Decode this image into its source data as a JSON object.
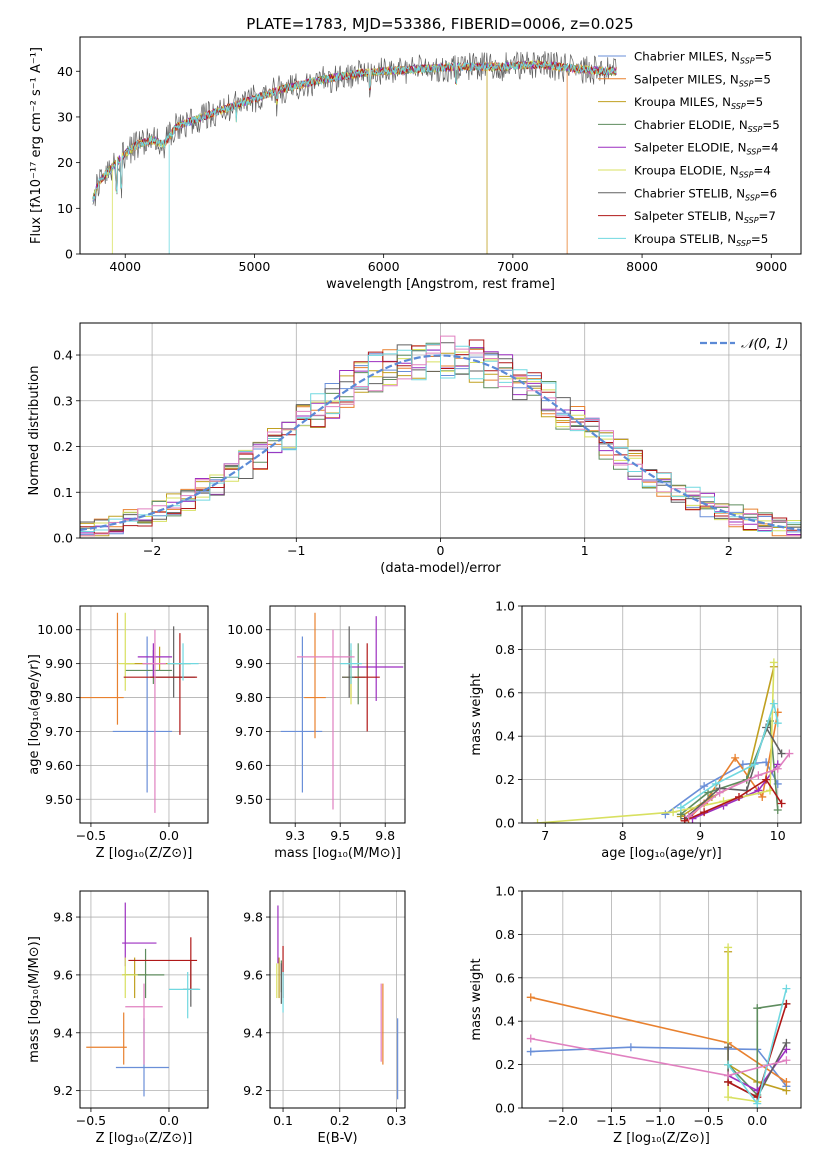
{
  "figure_title": "PLATE=1783, MJD=53386, FIBERID=0006, z=0.025",
  "colors": [
    "#6a8fd8",
    "#e8812f",
    "#c0a020",
    "#5e8c5e",
    "#9c2fc0",
    "#d8e060",
    "#606060",
    "#b01818",
    "#70d8e0",
    "#e080c0"
  ],
  "chart_data": [
    {
      "id": "spectrum",
      "type": "line",
      "xlabel": "wavelength [Angstrom, rest frame]",
      "ylabel": "Flux [fλ10⁻¹⁷ erg cm⁻² s⁻¹ A⁻¹]",
      "xlim": [
        3650,
        9230
      ],
      "ylim": [
        0,
        47.5
      ],
      "xticks": [
        4000,
        5000,
        6000,
        7000,
        8000,
        9000
      ],
      "yticks": [
        0,
        10,
        20,
        30,
        40
      ],
      "grid": false,
      "legend_placement": "top-right",
      "continuum": [
        [
          3750,
          12
        ],
        [
          3800,
          16
        ],
        [
          3900,
          19
        ],
        [
          4000,
          22
        ],
        [
          4100,
          24
        ],
        [
          4200,
          25
        ],
        [
          4300,
          24
        ],
        [
          4400,
          28
        ],
        [
          4600,
          30
        ],
        [
          4800,
          32
        ],
        [
          5000,
          34
        ],
        [
          5200,
          36
        ],
        [
          5500,
          38
        ],
        [
          5800,
          39.5
        ],
        [
          6000,
          40
        ],
        [
          6300,
          40.5
        ],
        [
          6600,
          41
        ],
        [
          6900,
          41
        ],
        [
          7200,
          41.5
        ],
        [
          7500,
          40.5
        ],
        [
          7700,
          40
        ],
        [
          7800,
          40
        ]
      ],
      "series": [
        {
          "name": "Chabrier MILES, N_SSP=5",
          "legend_main": "Chabrier MILES, N",
          "legend_sub": "SSP",
          "legend_tail": "=5"
        },
        {
          "name": "Salpeter MILES, N_SSP=5",
          "legend_main": "Salpeter MILES, N",
          "legend_sub": "SSP",
          "legend_tail": "=5"
        },
        {
          "name": "Kroupa MILES, N_SSP=5",
          "legend_main": "Kroupa MILES, N",
          "legend_sub": "SSP",
          "legend_tail": "=5"
        },
        {
          "name": "Chabrier ELODIE, N_SSP=5",
          "legend_main": "Chabrier ELODIE, N",
          "legend_sub": "SSP",
          "legend_tail": "=5"
        },
        {
          "name": "Salpeter ELODIE, N_SSP=4",
          "legend_main": "Salpeter ELODIE, N",
          "legend_sub": "SSP",
          "legend_tail": "=4"
        },
        {
          "name": "Kroupa ELODIE, N_SSP=4",
          "legend_main": "Kroupa ELODIE, N",
          "legend_sub": "SSP",
          "legend_tail": "=4"
        },
        {
          "name": "Chabrier STELIB, N_SSP=6",
          "legend_main": "Chabrier STELIB, N",
          "legend_sub": "SSP",
          "legend_tail": "=6"
        },
        {
          "name": "Salpeter STELIB, N_SSP=7",
          "legend_main": "Salpeter STELIB, N",
          "legend_sub": "SSP",
          "legend_tail": "=7"
        },
        {
          "name": "Kroupa STELIB, N_SSP=5",
          "legend_main": "Kroupa STELIB, N",
          "legend_sub": "SSP",
          "legend_tail": "=5"
        }
      ]
    },
    {
      "id": "residuals",
      "type": "bar",
      "xlabel": "(data-model)/error",
      "ylabel": "Normed distribution",
      "xlim": [
        -2.5,
        2.5
      ],
      "ylim": [
        0,
        0.47
      ],
      "xticks": [
        -2,
        -1,
        0,
        1,
        2
      ],
      "yticks": [
        0.0,
        0.1,
        0.2,
        0.3,
        0.4
      ],
      "grid": true,
      "legend_placement": "top-right",
      "reference_curve": "N(0,1)",
      "legend_label": "𝒩(0, 1)",
      "bin_width": 0.1
    },
    {
      "id": "age-vs-Z",
      "type": "scatter",
      "xlabel": "Z [log₁₀(Z/Z⊙)]",
      "ylabel": "age  [log₁₀(age/yr)]",
      "xlim": [
        -0.57,
        0.25
      ],
      "ylim": [
        9.43,
        10.07
      ],
      "xticks": [
        -0.5,
        0.0
      ],
      "yticks": [
        9.5,
        9.6,
        9.7,
        9.8,
        9.9,
        10.0
      ],
      "grid": true,
      "points": [
        {
          "x": -0.14,
          "y": 9.7,
          "xerr": [
            0.22,
            0.16
          ],
          "yerr": [
            0.18,
            0.28
          ],
          "c": 0
        },
        {
          "x": -0.33,
          "y": 9.8,
          "xerr": [
            0.24,
            0.04
          ],
          "yerr": [
            0.08,
            0.25
          ],
          "c": 1
        },
        {
          "x": -0.06,
          "y": 9.9,
          "xerr": [
            0.22,
            0.2
          ],
          "yerr": [
            0.02,
            0.05
          ],
          "c": 2
        },
        {
          "x": -0.1,
          "y": 9.88,
          "xerr": [
            0.18,
            0.12
          ],
          "yerr": [
            0.04,
            0.06
          ],
          "c": 3
        },
        {
          "x": -0.1,
          "y": 9.92,
          "xerr": [
            0.1,
            0.12
          ],
          "yerr": [
            0.06,
            0.04
          ],
          "c": 4
        },
        {
          "x": -0.28,
          "y": 9.9,
          "xerr": [
            0.04,
            0.06
          ],
          "yerr": [
            0.08,
            0.15
          ],
          "c": 5
        },
        {
          "x": 0.03,
          "y": 9.86,
          "xerr": [
            0.15,
            0.14
          ],
          "yerr": [
            0.06,
            0.15
          ],
          "c": 6
        },
        {
          "x": 0.07,
          "y": 9.86,
          "xerr": [
            0.36,
            0.11
          ],
          "yerr": [
            0.17,
            0.13
          ],
          "c": 7
        },
        {
          "x": 0.09,
          "y": 9.9,
          "xerr": [
            0.1,
            0.1
          ],
          "yerr": [
            0.05,
            0.06
          ],
          "c": 8
        },
        {
          "x": -0.09,
          "y": 9.9,
          "xerr": [
            0.08,
            0.07
          ],
          "yerr": [
            0.44,
            0.1
          ],
          "c": 9
        }
      ]
    },
    {
      "id": "age-vs-mass",
      "type": "scatter",
      "xlabel": "mass [log₁₀(M/M⊙)]",
      "ylabel": "",
      "xlim": [
        9.11,
        9.86
      ],
      "ylim": [
        9.43,
        10.07
      ],
      "xticks": [
        9.25,
        9.5,
        9.75
      ],
      "yticks": [
        9.5,
        9.6,
        9.7,
        9.8,
        9.9,
        10.0
      ],
      "grid": true,
      "points": [
        {
          "x": 9.29,
          "y": 9.7,
          "xerr": [
            0.12,
            0.11
          ],
          "yerr": [
            0.18,
            0.28
          ],
          "c": 0
        },
        {
          "x": 9.36,
          "y": 9.8,
          "xerr": [
            0.06,
            0.06
          ],
          "yerr": [
            0.12,
            0.25
          ],
          "c": 1
        },
        {
          "x": 9.56,
          "y": 9.86,
          "xerr": [
            0.05,
            0.05
          ],
          "yerr": [
            0.06,
            0.08
          ],
          "c": 2
        },
        {
          "x": 9.6,
          "y": 9.86,
          "xerr": [
            0.06,
            0.04
          ],
          "yerr": [
            0.08,
            0.1
          ],
          "c": 3
        },
        {
          "x": 9.7,
          "y": 9.89,
          "xerr": [
            0.15,
            0.15
          ],
          "yerr": [
            0.1,
            0.15
          ],
          "c": 4
        },
        {
          "x": 9.56,
          "y": 9.86,
          "xerr": [
            0.04,
            0.04
          ],
          "yerr": [
            0.08,
            0.08
          ],
          "c": 5
        },
        {
          "x": 9.55,
          "y": 9.86,
          "xerr": [
            0.04,
            0.04
          ],
          "yerr": [
            0.06,
            0.15
          ],
          "c": 6
        },
        {
          "x": 9.65,
          "y": 9.86,
          "xerr": [
            0.07,
            0.07
          ],
          "yerr": [
            0.16,
            0.1
          ],
          "c": 7
        },
        {
          "x": 9.56,
          "y": 9.9,
          "xerr": [
            0.06,
            0.06
          ],
          "yerr": [
            0.06,
            0.06
          ],
          "c": 8
        },
        {
          "x": 9.46,
          "y": 9.92,
          "xerr": [
            0.2,
            0.12
          ],
          "yerr": [
            0.45,
            0.08
          ],
          "c": 9
        }
      ]
    },
    {
      "id": "weight-vs-age",
      "type": "line",
      "xlabel": "age  [log₁₀(age/yr)]",
      "ylabel": "mass weight",
      "xlim": [
        6.7,
        10.3
      ],
      "ylim": [
        0,
        1.0
      ],
      "xticks": [
        7,
        8,
        9,
        10
      ],
      "yticks": [
        0.0,
        0.2,
        0.4,
        0.6,
        0.8,
        1.0
      ],
      "grid": true,
      "series": [
        {
          "c": 0,
          "x": [
            8.55,
            9.05,
            9.55,
            9.85,
            10.0
          ],
          "y": [
            0.04,
            0.17,
            0.27,
            0.28,
            0.18
          ]
        },
        {
          "c": 1,
          "x": [
            8.85,
            9.05,
            9.45,
            9.8,
            10.0
          ],
          "y": [
            0.02,
            0.09,
            0.3,
            0.12,
            0.51
          ]
        },
        {
          "c": 2,
          "x": [
            8.75,
            9.15,
            9.6,
            9.95
          ],
          "y": [
            0.03,
            0.12,
            0.2,
            0.72
          ]
        },
        {
          "c": 3,
          "x": [
            8.75,
            9.1,
            9.6,
            9.9,
            10.0
          ],
          "y": [
            0.04,
            0.14,
            0.2,
            0.47,
            0.06
          ]
        },
        {
          "c": 4,
          "x": [
            8.9,
            9.3,
            9.75,
            10.0
          ],
          "y": [
            0.02,
            0.08,
            0.15,
            0.27
          ]
        },
        {
          "c": 5,
          "x": [
            6.9,
            8.65,
            9.3,
            9.9,
            9.95
          ],
          "y": [
            0.0,
            0.05,
            0.1,
            0.15,
            0.74
          ]
        },
        {
          "c": 6,
          "x": [
            8.8,
            9.25,
            9.6,
            9.85,
            10.05
          ],
          "y": [
            0.02,
            0.16,
            0.15,
            0.44,
            0.32
          ]
        },
        {
          "c": 7,
          "x": [
            8.8,
            9.05,
            9.5,
            9.85,
            10.05
          ],
          "y": [
            0.01,
            0.05,
            0.12,
            0.2,
            0.09
          ]
        },
        {
          "c": 8,
          "x": [
            8.75,
            9.2,
            9.7,
            9.95,
            10.0
          ],
          "y": [
            0.07,
            0.18,
            0.27,
            0.55,
            0.46
          ]
        },
        {
          "c": 9,
          "x": [
            8.85,
            9.25,
            9.75,
            10.0,
            10.15
          ],
          "y": [
            0.03,
            0.14,
            0.22,
            0.25,
            0.32
          ]
        }
      ]
    },
    {
      "id": "mass-vs-Z",
      "type": "scatter",
      "xlabel": "Z [log₁₀(Z/Z⊙)]",
      "ylabel": "mass [log₁₀(M/M⊙)]",
      "xlim": [
        -0.57,
        0.25
      ],
      "ylim": [
        9.14,
        9.89
      ],
      "xticks": [
        -0.5,
        0.0
      ],
      "yticks": [
        9.2,
        9.4,
        9.6,
        9.8
      ],
      "grid": true,
      "points": [
        {
          "x": -0.16,
          "y": 9.28,
          "xerr": [
            0.18,
            0.16
          ],
          "yerr": [
            0.1,
            0.17
          ],
          "c": 0
        },
        {
          "x": -0.29,
          "y": 9.35,
          "xerr": [
            0.24,
            0.02
          ],
          "yerr": [
            0.06,
            0.12
          ],
          "c": 1
        },
        {
          "x": -0.22,
          "y": 9.6,
          "xerr": [
            0.08,
            0.08
          ],
          "yerr": [
            0.08,
            0.06
          ],
          "c": 2
        },
        {
          "x": -0.15,
          "y": 9.6,
          "xerr": [
            0.14,
            0.12
          ],
          "yerr": [
            0.08,
            0.09
          ],
          "c": 3
        },
        {
          "x": -0.28,
          "y": 9.71,
          "xerr": [
            0.02,
            0.2
          ],
          "yerr": [
            0.08,
            0.14
          ],
          "c": 4
        },
        {
          "x": -0.28,
          "y": 9.6,
          "xerr": [
            0.02,
            0.08
          ],
          "yerr": [
            0.08,
            0.06
          ],
          "c": 5
        },
        {
          "x": 0.14,
          "y": 9.55,
          "xerr": [
            0.05,
            0.05
          ],
          "yerr": [
            0.06,
            0.1
          ],
          "c": 6
        },
        {
          "x": 0.14,
          "y": 9.65,
          "xerr": [
            0.4,
            0.04
          ],
          "yerr": [
            0.1,
            0.08
          ],
          "c": 7
        },
        {
          "x": 0.12,
          "y": 9.55,
          "xerr": [
            0.12,
            0.08
          ],
          "yerr": [
            0.1,
            0.06
          ],
          "c": 8
        },
        {
          "x": -0.16,
          "y": 9.49,
          "xerr": [
            0.12,
            0.12
          ],
          "yerr": [
            0.2,
            0.08
          ],
          "c": 9
        }
      ]
    },
    {
      "id": "mass-vs-ebv",
      "type": "scatter",
      "xlabel": "E(B-V)",
      "ylabel": "",
      "xlim": [
        0.077,
        0.315
      ],
      "ylim": [
        9.14,
        9.89
      ],
      "xticks": [
        0.1,
        0.2,
        0.3
      ],
      "yticks": [
        9.2,
        9.4,
        9.6,
        9.8
      ],
      "grid": true,
      "points": [
        {
          "x": 0.302,
          "y": 9.28,
          "yerr": [
            0.11,
            0.17
          ],
          "c": 0
        },
        {
          "x": 0.276,
          "y": 9.4,
          "yerr": [
            0.11,
            0.17
          ],
          "c": 1
        },
        {
          "x": 0.093,
          "y": 9.6,
          "yerr": [
            0.08,
            0.06
          ],
          "c": 2
        },
        {
          "x": 0.097,
          "y": 9.6,
          "yerr": [
            0.06,
            0.05
          ],
          "c": 3
        },
        {
          "x": 0.091,
          "y": 9.72,
          "yerr": [
            0.08,
            0.12
          ],
          "c": 4
        },
        {
          "x": 0.089,
          "y": 9.6,
          "yerr": [
            0.08,
            0.04
          ],
          "c": 5
        },
        {
          "x": 0.097,
          "y": 9.56,
          "yerr": [
            0.06,
            0.08
          ],
          "c": 6
        },
        {
          "x": 0.1,
          "y": 9.62,
          "yerr": [
            0.1,
            0.08
          ],
          "c": 7
        },
        {
          "x": 0.1,
          "y": 9.55,
          "yerr": [
            0.08,
            0.06
          ],
          "c": 8
        },
        {
          "x": 0.273,
          "y": 9.45,
          "yerr": [
            0.15,
            0.12
          ],
          "c": 9
        }
      ]
    },
    {
      "id": "weight-vs-Z",
      "type": "line",
      "xlabel": "Z [log₁₀(Z/Z⊙)]",
      "ylabel": "mass weight",
      "xlim": [
        -2.42,
        0.45
      ],
      "ylim": [
        0,
        1.0
      ],
      "xticks": [
        -2.0,
        -1.5,
        -1.0,
        -0.5,
        0.0
      ],
      "yticks": [
        0.0,
        0.2,
        0.4,
        0.6,
        0.8,
        1.0
      ],
      "grid": true,
      "series": [
        {
          "c": 0,
          "x": [
            -2.33,
            -1.3,
            0.0,
            0.3
          ],
          "y": [
            0.26,
            0.28,
            0.27,
            0.1
          ]
        },
        {
          "c": 1,
          "x": [
            -2.33,
            -0.3,
            0.3
          ],
          "y": [
            0.51,
            0.3,
            0.12
          ]
        },
        {
          "c": 2,
          "x": [
            -0.3,
            -0.3,
            0.0,
            0.3
          ],
          "y": [
            0.72,
            0.2,
            0.12,
            0.08
          ]
        },
        {
          "c": 3,
          "x": [
            -0.3,
            0.0,
            0.0,
            0.3
          ],
          "y": [
            0.2,
            0.06,
            0.46,
            0.48
          ]
        },
        {
          "c": 4,
          "x": [
            -0.3,
            0.0,
            0.3
          ],
          "y": [
            0.15,
            0.08,
            0.27
          ]
        },
        {
          "c": 5,
          "x": [
            -0.3,
            -0.3,
            0.0
          ],
          "y": [
            0.74,
            0.05,
            0.03
          ]
        },
        {
          "c": 6,
          "x": [
            -0.3,
            -0.3,
            0.0,
            0.3
          ],
          "y": [
            0.28,
            0.12,
            0.05,
            0.3
          ]
        },
        {
          "c": 7,
          "x": [
            -0.3,
            0.0,
            0.3
          ],
          "y": [
            0.12,
            0.05,
            0.48
          ]
        },
        {
          "c": 8,
          "x": [
            -0.3,
            0.0,
            0.3
          ],
          "y": [
            0.2,
            0.02,
            0.55
          ]
        },
        {
          "c": 9,
          "x": [
            -2.33,
            -0.3,
            0.3
          ],
          "y": [
            0.32,
            0.15,
            0.22
          ]
        }
      ]
    }
  ]
}
